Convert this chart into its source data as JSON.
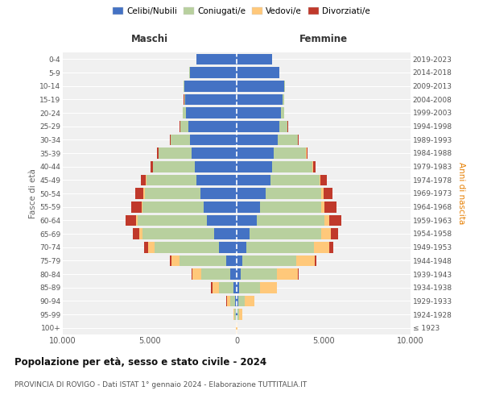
{
  "age_groups": [
    "100+",
    "95-99",
    "90-94",
    "85-89",
    "80-84",
    "75-79",
    "70-74",
    "65-69",
    "60-64",
    "55-59",
    "50-54",
    "45-49",
    "40-44",
    "35-39",
    "30-34",
    "25-29",
    "20-24",
    "15-19",
    "10-14",
    "5-9",
    "0-4"
  ],
  "birth_years": [
    "≤ 1923",
    "1924-1928",
    "1929-1933",
    "1934-1938",
    "1939-1943",
    "1944-1948",
    "1949-1953",
    "1954-1958",
    "1959-1963",
    "1964-1968",
    "1969-1973",
    "1974-1978",
    "1979-1983",
    "1984-1988",
    "1989-1993",
    "1994-1998",
    "1999-2003",
    "2004-2008",
    "2009-2013",
    "2014-2018",
    "2019-2023"
  ],
  "colors": {
    "celibe": "#4472c4",
    "coniugato": "#b8d09e",
    "vedovo": "#ffc87a",
    "divorziato": "#c0392b"
  },
  "males": {
    "celibe": [
      15,
      50,
      90,
      180,
      350,
      600,
      1000,
      1300,
      1700,
      1900,
      2100,
      2300,
      2400,
      2600,
      2700,
      2800,
      2900,
      2950,
      3000,
      2700,
      2300
    ],
    "coniugato": [
      8,
      70,
      280,
      850,
      1700,
      2700,
      3700,
      4100,
      4000,
      3500,
      3200,
      2900,
      2400,
      1900,
      1100,
      450,
      180,
      80,
      40,
      15,
      8
    ],
    "vedovo": [
      4,
      45,
      190,
      380,
      480,
      430,
      380,
      190,
      90,
      70,
      50,
      35,
      18,
      8,
      4,
      2,
      1,
      1,
      0,
      0,
      0
    ],
    "divorziato": [
      1,
      8,
      25,
      50,
      70,
      90,
      230,
      380,
      620,
      580,
      480,
      280,
      140,
      70,
      35,
      18,
      4,
      2,
      0,
      0,
      0
    ]
  },
  "females": {
    "celibe": [
      15,
      40,
      70,
      130,
      220,
      320,
      550,
      750,
      1150,
      1350,
      1650,
      1950,
      2050,
      2150,
      2350,
      2450,
      2550,
      2650,
      2750,
      2450,
      2050
    ],
    "coniugato": [
      8,
      90,
      370,
      1200,
      2100,
      3100,
      3900,
      4100,
      3900,
      3500,
      3200,
      2800,
      2300,
      1850,
      1150,
      480,
      190,
      70,
      25,
      8,
      4
    ],
    "vedovo": [
      28,
      185,
      580,
      970,
      1180,
      1080,
      870,
      580,
      290,
      190,
      145,
      75,
      38,
      18,
      9,
      4,
      2,
      1,
      0,
      0,
      0
    ],
    "divorziato": [
      1,
      8,
      18,
      35,
      45,
      75,
      235,
      385,
      680,
      680,
      530,
      340,
      145,
      75,
      38,
      18,
      4,
      2,
      0,
      0,
      0
    ]
  },
  "xlim": 10000,
  "xticks": [
    -10000,
    -5000,
    0,
    5000,
    10000
  ],
  "xticklabels": [
    "10.000",
    "5.000",
    "0",
    "5.000",
    "10.000"
  ],
  "title": "Popolazione per età, sesso e stato civile - 2024",
  "subtitle": "PROVINCIA DI ROVIGO - Dati ISTAT 1° gennaio 2024 - Elaborazione TUTTITALIA.IT",
  "ylabel_left": "Fasce di età",
  "ylabel_right": "Anni di nascita",
  "legend_labels": [
    "Celibi/Nubili",
    "Coniugati/e",
    "Vedovi/e",
    "Divorziati/e"
  ],
  "maschi_label": "Maschi",
  "femmine_label": "Femmine",
  "bg_color": "#f0f0f0"
}
